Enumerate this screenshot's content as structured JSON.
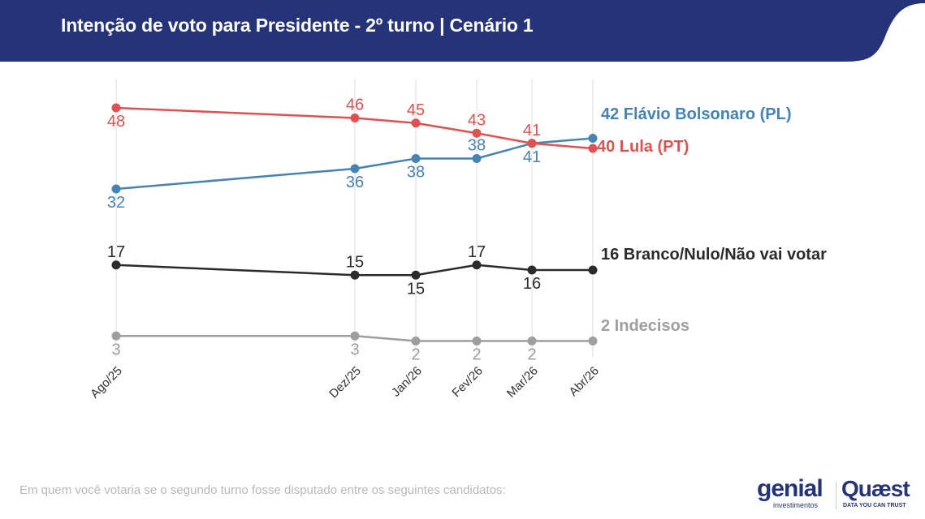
{
  "header": {
    "title": "Intenção de voto para Presidente - 2º turno | Cenário 1",
    "color": "#253479"
  },
  "footnote": "Em quem você votaria se o segundo turno fosse disputado entre os seguintes candidatos:",
  "logos": {
    "genial": "genial",
    "genial_sub": "investimentos",
    "quaest": "Quæst",
    "quaest_sub": "DATA YOU CAN TRUST"
  },
  "chart_data": {
    "type": "line",
    "categories": [
      "Ago/25",
      "Dez/25",
      "Jan/26",
      "Fev/26",
      "Mar/26",
      "Abr/26"
    ],
    "ylim": [
      0,
      50
    ],
    "grid": "vertical",
    "legend": "end-of-line labels",
    "series": [
      {
        "name": "Flávio Bolsonaro (PL)",
        "end_label": "42 Flávio Bolsonaro (PL)",
        "color": "#4682b4",
        "values": [
          32,
          36,
          38,
          38,
          41,
          42
        ]
      },
      {
        "name": "Lula (PT)",
        "end_label": "40 Lula (PT)",
        "color": "#e05252",
        "values": [
          48,
          46,
          45,
          43,
          41,
          40
        ]
      },
      {
        "name": "Branco/Nulo/Não vai votar",
        "end_label": "16 Branco/Nulo/Não vai votar",
        "color": "#2b2b2b",
        "values": [
          17,
          15,
          15,
          17,
          16,
          16
        ]
      },
      {
        "name": "Indecisos",
        "end_label": "2 Indecisos",
        "color": "#9e9e9e",
        "values": [
          3,
          3,
          2,
          2,
          2,
          2
        ]
      }
    ]
  }
}
